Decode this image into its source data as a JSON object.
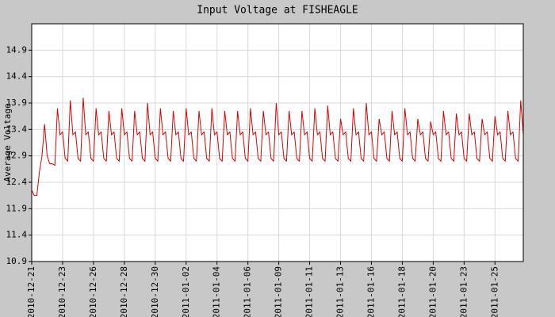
{
  "chart_data": {
    "type": "line",
    "title": "Input Voltage at FISHEAGLE",
    "y_label": "Average Voltage",
    "color": "#dd0000",
    "grid": true,
    "ylim": [
      10.9,
      15.4
    ],
    "yticks": [
      10.9,
      11.4,
      11.9,
      12.4,
      12.9,
      13.4,
      13.9,
      14.4,
      14.9
    ],
    "categories": [
      "2010-12-21",
      null,
      null,
      null,
      null,
      null,
      null,
      null,
      null,
      null,
      null,
      null,
      "2010-12-23",
      null,
      null,
      null,
      null,
      null,
      null,
      null,
      null,
      null,
      null,
      null,
      "2010-12-26",
      null,
      null,
      null,
      null,
      null,
      null,
      null,
      null,
      null,
      null,
      null,
      "2010-12-28",
      null,
      null,
      null,
      null,
      null,
      null,
      null,
      null,
      null,
      null,
      null,
      "2010-12-30",
      null,
      null,
      null,
      null,
      null,
      null,
      null,
      null,
      null,
      null,
      null,
      "2011-01-02",
      null,
      null,
      null,
      null,
      null,
      null,
      null,
      null,
      null,
      null,
      null,
      "2011-01-04",
      null,
      null,
      null,
      null,
      null,
      null,
      null,
      null,
      null,
      null,
      null,
      "2011-01-06",
      null,
      null,
      null,
      null,
      null,
      null,
      null,
      null,
      null,
      null,
      null,
      "2011-01-09",
      null,
      null,
      null,
      null,
      null,
      null,
      null,
      null,
      null,
      null,
      null,
      "2011-01-11",
      null,
      null,
      null,
      null,
      null,
      null,
      null,
      null,
      null,
      null,
      null,
      "2011-01-13",
      null,
      null,
      null,
      null,
      null,
      null,
      null,
      null,
      null,
      null,
      null,
      "2011-01-16",
      null,
      null,
      null,
      null,
      null,
      null,
      null,
      null,
      null,
      null,
      null,
      "2011-01-18",
      null,
      null,
      null,
      null,
      null,
      null,
      null,
      null,
      null,
      null,
      null,
      "2011-01-20",
      null,
      null,
      null,
      null,
      null,
      null,
      null,
      null,
      null,
      null,
      null,
      "2011-01-23",
      null,
      null,
      null,
      null,
      null,
      null,
      null,
      null,
      null,
      null,
      null,
      "2011-01-25",
      null,
      null,
      null,
      null,
      null,
      null,
      null,
      null,
      null,
      null,
      null
    ],
    "values": [
      12.25,
      12.15,
      12.15,
      12.6,
      12.9,
      13.5,
      12.9,
      12.75,
      12.75,
      12.72,
      13.8,
      13.3,
      13.35,
      12.85,
      12.8,
      13.95,
      13.3,
      13.35,
      12.85,
      12.8,
      14.0,
      13.3,
      13.35,
      12.85,
      12.8,
      13.8,
      13.3,
      13.35,
      12.85,
      12.8,
      13.75,
      13.3,
      13.35,
      12.85,
      12.8,
      13.8,
      13.3,
      13.35,
      12.85,
      12.8,
      13.75,
      13.3,
      13.35,
      12.85,
      12.8,
      13.9,
      13.3,
      13.35,
      12.85,
      12.8,
      13.8,
      13.3,
      13.35,
      12.85,
      12.8,
      13.75,
      13.3,
      13.35,
      12.85,
      12.8,
      13.8,
      13.3,
      13.35,
      12.85,
      12.8,
      13.75,
      13.3,
      13.35,
      12.85,
      12.8,
      13.8,
      13.3,
      13.35,
      12.85,
      12.8,
      13.75,
      13.3,
      13.35,
      12.85,
      12.8,
      13.75,
      13.3,
      13.35,
      12.85,
      12.8,
      13.8,
      13.3,
      13.35,
      12.85,
      12.8,
      13.75,
      13.3,
      13.35,
      12.85,
      12.8,
      13.9,
      13.3,
      13.35,
      12.85,
      12.8,
      13.75,
      13.3,
      13.35,
      12.85,
      12.8,
      13.75,
      13.3,
      13.35,
      12.85,
      12.8,
      13.8,
      13.3,
      13.35,
      12.85,
      12.8,
      13.85,
      13.3,
      13.35,
      12.85,
      12.8,
      13.6,
      13.3,
      13.35,
      12.85,
      12.8,
      13.8,
      13.3,
      13.35,
      12.85,
      12.8,
      13.9,
      13.3,
      13.35,
      12.85,
      12.8,
      13.6,
      13.3,
      13.35,
      12.85,
      12.8,
      13.75,
      13.3,
      13.35,
      12.85,
      12.8,
      13.8,
      13.3,
      13.35,
      12.85,
      12.8,
      13.6,
      13.3,
      13.35,
      12.85,
      12.8,
      13.55,
      13.3,
      13.35,
      12.85,
      12.8,
      13.75,
      13.3,
      13.35,
      12.85,
      12.8,
      13.7,
      13.3,
      13.35,
      12.85,
      12.8,
      13.7,
      13.3,
      13.35,
      12.85,
      12.8,
      13.6,
      13.3,
      13.35,
      12.85,
      12.8,
      13.65,
      13.3,
      13.35,
      12.85,
      12.8,
      13.75,
      13.3,
      13.35,
      12.85,
      12.8,
      13.95,
      13.3
    ]
  }
}
